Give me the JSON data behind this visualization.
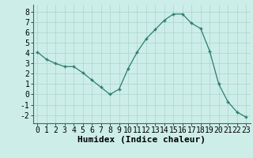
{
  "x": [
    0,
    1,
    2,
    3,
    4,
    5,
    6,
    7,
    8,
    9,
    10,
    11,
    12,
    13,
    14,
    15,
    16,
    17,
    18,
    19,
    20,
    21,
    22,
    23
  ],
  "y": [
    4.1,
    3.4,
    3.0,
    2.7,
    2.7,
    2.1,
    1.4,
    0.7,
    0.0,
    0.5,
    2.5,
    4.1,
    5.4,
    6.3,
    7.2,
    7.8,
    7.8,
    6.9,
    6.4,
    4.2,
    1.0,
    -0.7,
    -1.7,
    -2.2
  ],
  "xlabel": "Humidex (Indice chaleur)",
  "ylim": [
    -2.8,
    8.7
  ],
  "xlim": [
    -0.5,
    23.5
  ],
  "yticks": [
    -2,
    -1,
    0,
    1,
    2,
    3,
    4,
    5,
    6,
    7,
    8
  ],
  "xticks": [
    0,
    1,
    2,
    3,
    4,
    5,
    6,
    7,
    8,
    9,
    10,
    11,
    12,
    13,
    14,
    15,
    16,
    17,
    18,
    19,
    20,
    21,
    22,
    23
  ],
  "line_color": "#2a7d6e",
  "marker_color": "#2a7d6e",
  "bg_color": "#cdeee8",
  "grid_color": "#aad4cc",
  "xlabel_fontsize": 8,
  "tick_fontsize": 7,
  "fig_width": 3.2,
  "fig_height": 2.0,
  "dpi": 100
}
